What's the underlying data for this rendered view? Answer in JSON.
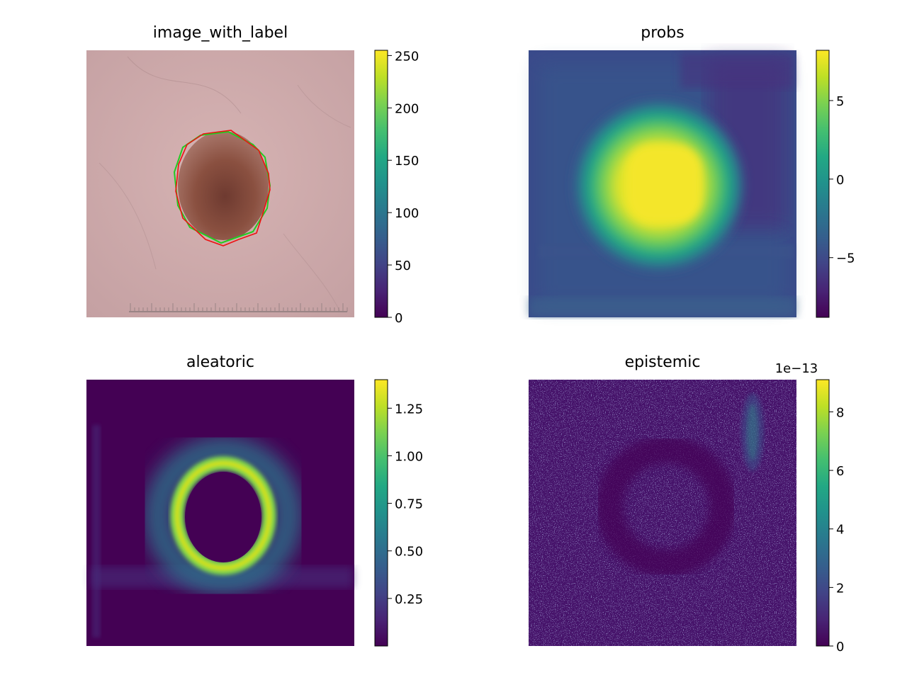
{
  "chart_data": [
    {
      "type": "heatmap",
      "title": "image_with_label",
      "colormap": "viridis",
      "colorbar": {
        "min": 0,
        "max": 255,
        "ticks": [
          0,
          50,
          100,
          150,
          200,
          250
        ],
        "labels": [
          "0",
          "50",
          "100",
          "150",
          "200",
          "250"
        ]
      },
      "image_content": "dermoscopy image of a brown skin lesion with a green contour and a red contour drawn around it, ruler at the bottom",
      "contour_colors": {
        "green": "#22cc22",
        "red": "#ee1111"
      },
      "axes_visible": false
    },
    {
      "type": "heatmap",
      "title": "probs",
      "colormap": "viridis",
      "colorbar": {
        "min": -8.8,
        "max": 8.2,
        "ticks": [
          5,
          0,
          -5
        ],
        "labels": [
          "5",
          "0",
          "−5"
        ]
      },
      "axes_visible": false
    },
    {
      "type": "heatmap",
      "title": "aleatoric",
      "colormap": "viridis",
      "colorbar": {
        "min": 0.0,
        "max": 1.4,
        "ticks": [
          0.25,
          0.5,
          0.75,
          1.0,
          1.25
        ],
        "labels": [
          "0.25",
          "0.50",
          "0.75",
          "1.00",
          "1.25"
        ]
      },
      "axes_visible": false
    },
    {
      "type": "heatmap",
      "title": "epistemic",
      "colormap": "viridis",
      "colorbar": {
        "min": 0,
        "max": 9.1,
        "ticks": [
          0,
          2,
          4,
          6,
          8
        ],
        "labels": [
          "0",
          "2",
          "4",
          "6",
          "8"
        ],
        "offset_text": "1e−13"
      },
      "axes_visible": false
    }
  ]
}
